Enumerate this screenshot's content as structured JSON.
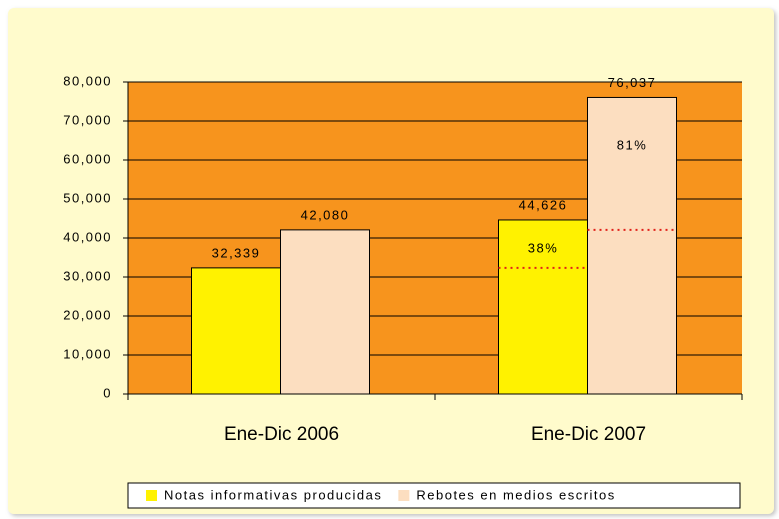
{
  "chart_data": {
    "type": "bar",
    "categories": [
      "Ene-Dic 2006",
      "Ene-Dic 2007"
    ],
    "series": [
      {
        "name": "Notas informativas producidas",
        "color": "#fff200",
        "values": [
          32339,
          44626
        ],
        "value_labels": [
          "32,339",
          "44,626"
        ]
      },
      {
        "name": "Rebotes en medios escritos",
        "color": "#fcdec0",
        "values": [
          42080,
          76037
        ],
        "value_labels": [
          "42,080",
          "76,037"
        ]
      }
    ],
    "annotations": [
      "38%",
      "81%"
    ],
    "ylim": [
      0,
      80000
    ],
    "yticks": [
      0,
      {
        "value": 10000,
        "label": "10,000"
      },
      {
        "value": 20000,
        "label": "20,000"
      },
      {
        "value": 30000,
        "label": "30,000"
      },
      {
        "value": 40000,
        "label": "40,000"
      },
      {
        "value": 50000,
        "label": "50,000"
      },
      {
        "value": 60000,
        "label": "60,000"
      },
      {
        "value": 70000,
        "label": "70,000"
      },
      {
        "value": 80000,
        "label": "80,000"
      }
    ],
    "grid": true,
    "plot_color": "#f7941d",
    "background_color": "#fffbcc",
    "legend": "bottom"
  }
}
